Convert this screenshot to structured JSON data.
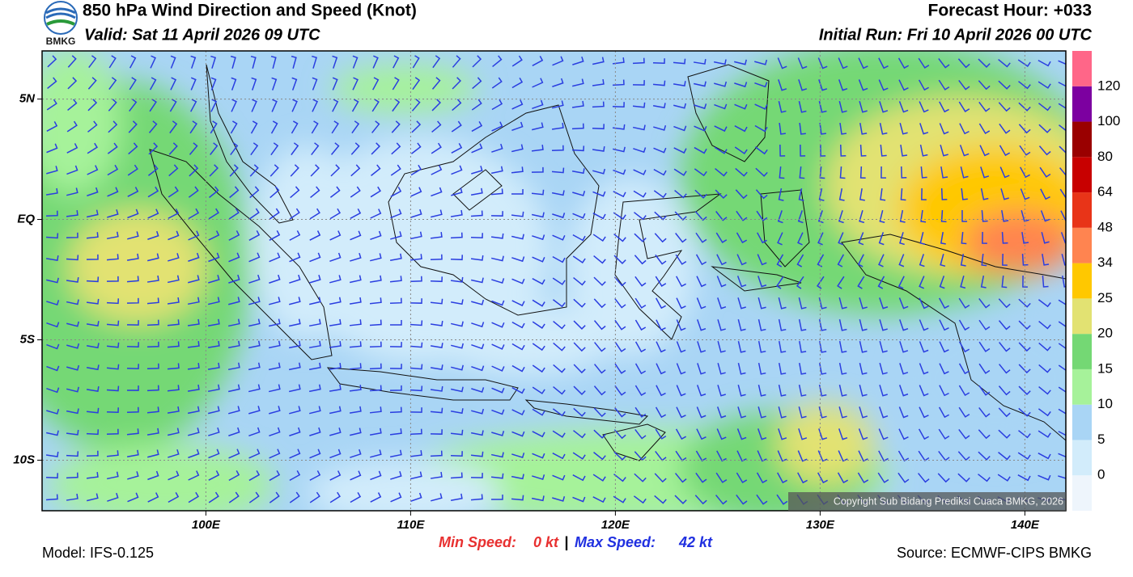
{
  "header": {
    "title": "850 hPa Wind Direction and Speed (Knot)",
    "valid": "Valid: Sat 11 April 2026 09 UTC",
    "forecast_hour": "Forecast Hour: +033",
    "initial_run": "Initial Run: Fri 10 April 2026 00 UTC",
    "logo_text": "BMKG"
  },
  "map": {
    "lonlim": [
      92,
      142
    ],
    "latlim": [
      -12.1,
      7.0
    ],
    "xticks": [
      {
        "value": 100,
        "label": "100E"
      },
      {
        "value": 110,
        "label": "110E"
      },
      {
        "value": 120,
        "label": "120E"
      },
      {
        "value": 130,
        "label": "130E"
      },
      {
        "value": 140,
        "label": "140E"
      }
    ],
    "yticks": [
      {
        "value": 5,
        "label": "5N"
      },
      {
        "value": 0,
        "label": "EQ"
      },
      {
        "value": -5,
        "label": "5S"
      },
      {
        "value": -10,
        "label": "10S"
      }
    ],
    "grid": true,
    "copyright": "Copyright Sub Bidang Prediksi Cuaca BMKG, 2026"
  },
  "legend": {
    "colors": [
      "#eef5fc",
      "#d2ecfb",
      "#a9d5f5",
      "#a6f29a",
      "#74d874",
      "#e2e272",
      "#ffc800",
      "#ff8450",
      "#e83418",
      "#c80000",
      "#9a0000",
      "#7c00a0",
      "#ff6688"
    ],
    "levels": [
      0,
      5,
      10,
      15,
      20,
      25,
      34,
      48,
      64,
      80,
      100,
      120
    ]
  },
  "footer": {
    "model": "Model: IFS-0.125",
    "source": "Source: ECMWF-CIPS BMKG",
    "min_label": "Min Speed:",
    "min_value": "0 kt",
    "separator": "|",
    "max_label": "Max Speed:",
    "max_value": "42 kt"
  }
}
